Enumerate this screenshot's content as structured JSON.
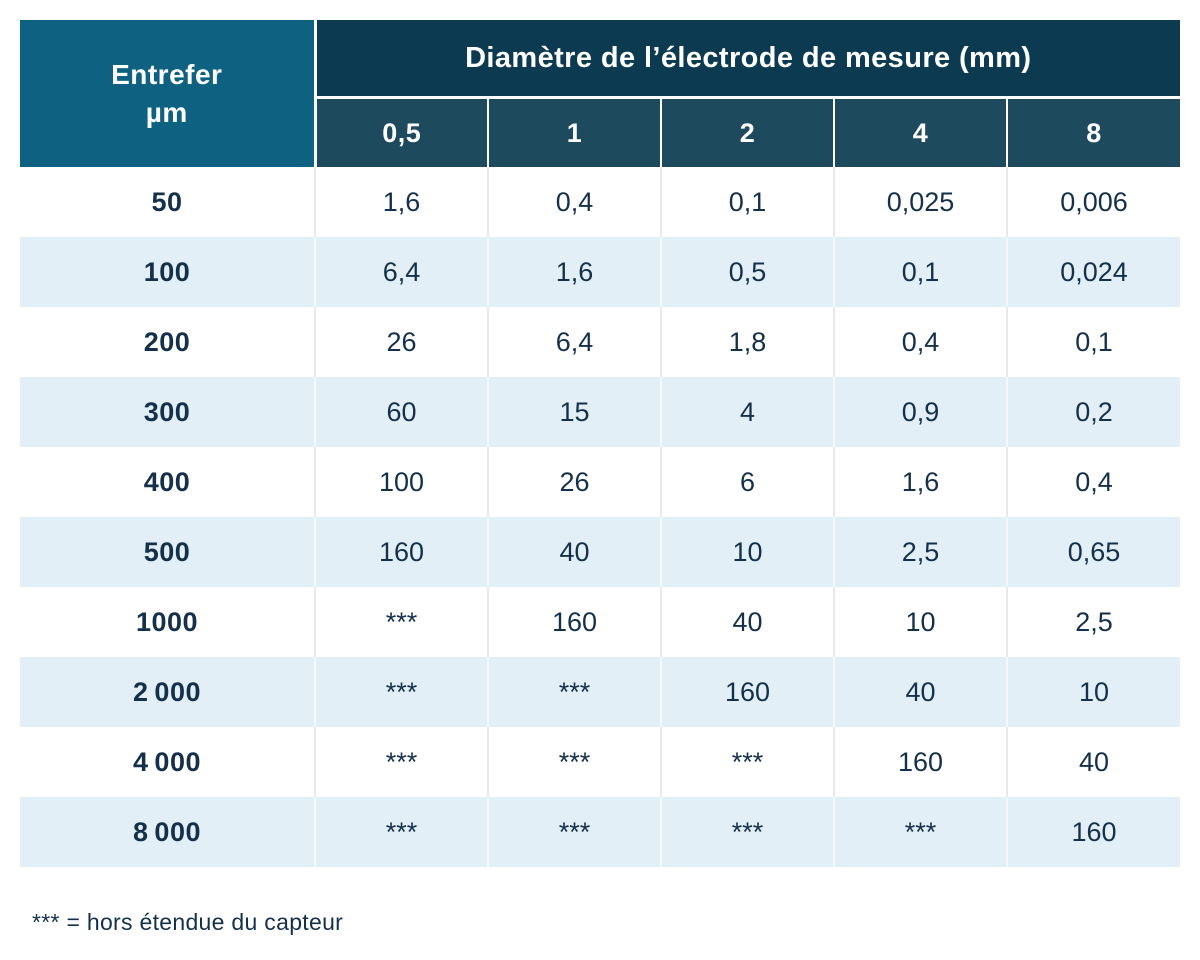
{
  "colors": {
    "header_navy": "#0c3a51",
    "subheader_teal": "#1e4a5e",
    "corner_teal": "#0e6181",
    "row_alt_blue": "#e2eff6",
    "text_dark_navy": "#14304a",
    "divider_white": "#ffffff",
    "divider_gray": "#e6eaec"
  },
  "chart_data": {
    "type": "table",
    "title": "Diamètre de l’électrode de mesure (mm)",
    "row_header_line1": "Entrefer",
    "row_header_line2": "µm",
    "row_header": "Entrefer µm",
    "columns": [
      "0,5",
      "1",
      "2",
      "4",
      "8"
    ],
    "rows": [
      {
        "label": "50",
        "values": [
          "1,6",
          "0,4",
          "0,1",
          "0,025",
          "0,006"
        ]
      },
      {
        "label": "100",
        "values": [
          "6,4",
          "1,6",
          "0,5",
          "0,1",
          "0,024"
        ]
      },
      {
        "label": "200",
        "values": [
          "26",
          "6,4",
          "1,8",
          "0,4",
          "0,1"
        ]
      },
      {
        "label": "300",
        "values": [
          "60",
          "15",
          "4",
          "0,9",
          "0,2"
        ]
      },
      {
        "label": "400",
        "values": [
          "100",
          "26",
          "6",
          "1,6",
          "0,4"
        ]
      },
      {
        "label": "500",
        "values": [
          "160",
          "40",
          "10",
          "2,5",
          "0,65"
        ]
      },
      {
        "label": "1000",
        "values": [
          "***",
          "160",
          "40",
          "10",
          "2,5"
        ]
      },
      {
        "label": "2 000",
        "values": [
          "***",
          "***",
          "160",
          "40",
          "10"
        ]
      },
      {
        "label": "4 000",
        "values": [
          "***",
          "***",
          "***",
          "160",
          "40"
        ]
      },
      {
        "label": "8 000",
        "values": [
          "***",
          "***",
          "***",
          "***",
          "160"
        ]
      }
    ],
    "footnote": "*** = hors étendue du capteur",
    "legend_marker": "***"
  }
}
